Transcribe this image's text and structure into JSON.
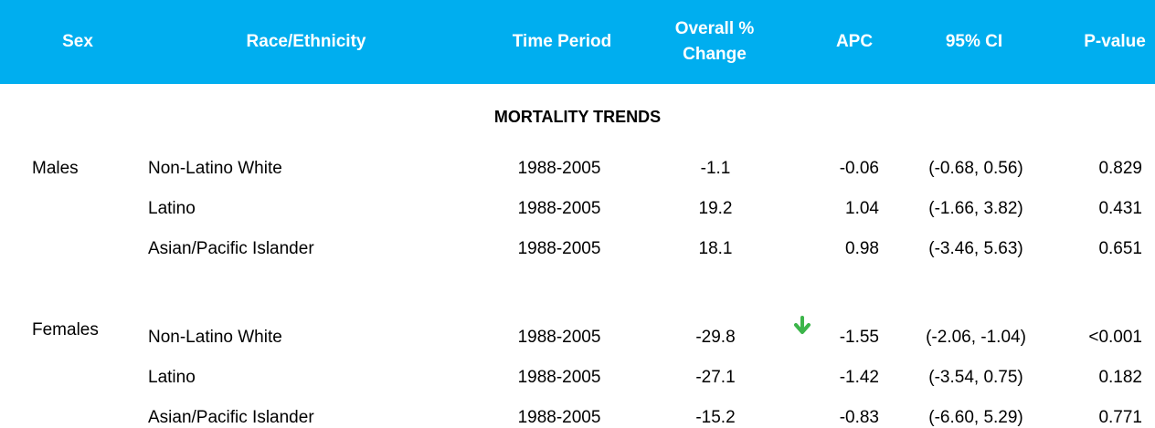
{
  "header": [
    "Sex",
    "Race/Ethnicity",
    "Time Period",
    "Overall % Change",
    "APC",
    "95% CI",
    "P-value"
  ],
  "section_title": "MORTALITY TRENDS",
  "groups": [
    {
      "sex": "Males",
      "rows": [
        [
          "Non-Latino White",
          "1988-2005",
          "-1.1",
          "-0.06",
          "(-0.68, 0.56)",
          "0.829"
        ],
        [
          "Latino",
          "1988-2005",
          "19.2",
          "1.04",
          "(-1.66, 3.82)",
          "0.431"
        ],
        [
          "Asian/Pacific Islander",
          "1988-2005",
          "18.1",
          "0.98",
          "(-3.46, 5.63)",
          "0.651"
        ]
      ]
    },
    {
      "sex": "Females",
      "rows": [
        [
          "Non-Latino White",
          "1988-2005",
          "-29.8",
          "-1.55",
          "(-2.06, -1.04)",
          "<0.001"
        ],
        [
          "Latino",
          "1988-2005",
          "-27.1",
          "-1.42",
          "(-3.54, 0.75)",
          "0.182"
        ],
        [
          "Asian/Pacific Islander",
          "1988-2005",
          "-15.2",
          "-0.83",
          "(-6.60, 5.29)",
          "0.771"
        ]
      ]
    }
  ]
}
